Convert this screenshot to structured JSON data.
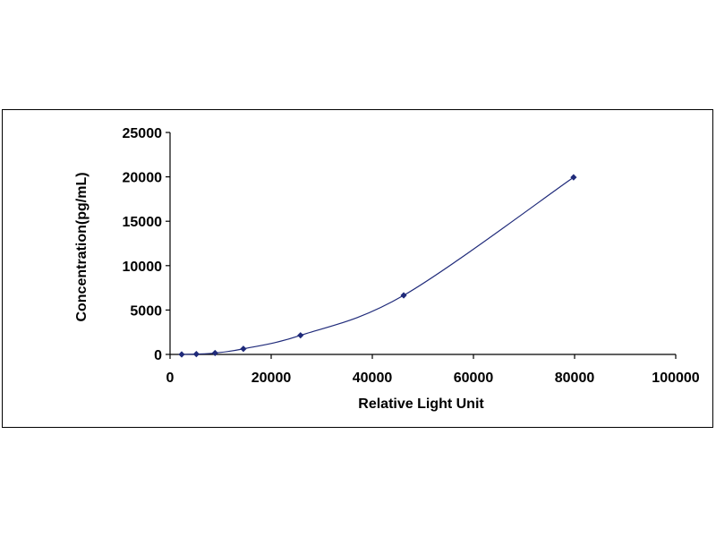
{
  "chart_data": {
    "type": "scatter",
    "title": "",
    "xlabel": "Relative Light Unit",
    "ylabel": "Concentration(pg/mL)",
    "xlim": [
      0,
      100000
    ],
    "ylim": [
      0,
      25000
    ],
    "xticks": [
      0,
      20000,
      40000,
      60000,
      80000,
      100000
    ],
    "yticks": [
      0,
      5000,
      10000,
      15000,
      20000,
      25000
    ],
    "grid": false,
    "legend": "none",
    "marker_color": "#1f2a7a",
    "line_color": "#1f2a7a",
    "series": [
      {
        "points": [
          {
            "x": 2300,
            "y": 0
          },
          {
            "x": 5200,
            "y": 40
          },
          {
            "x": 8900,
            "y": 160
          },
          {
            "x": 14500,
            "y": 630
          },
          {
            "x": 25800,
            "y": 2150
          },
          {
            "x": 46200,
            "y": 6650
          },
          {
            "x": 79800,
            "y": 19950
          }
        ]
      }
    ]
  }
}
